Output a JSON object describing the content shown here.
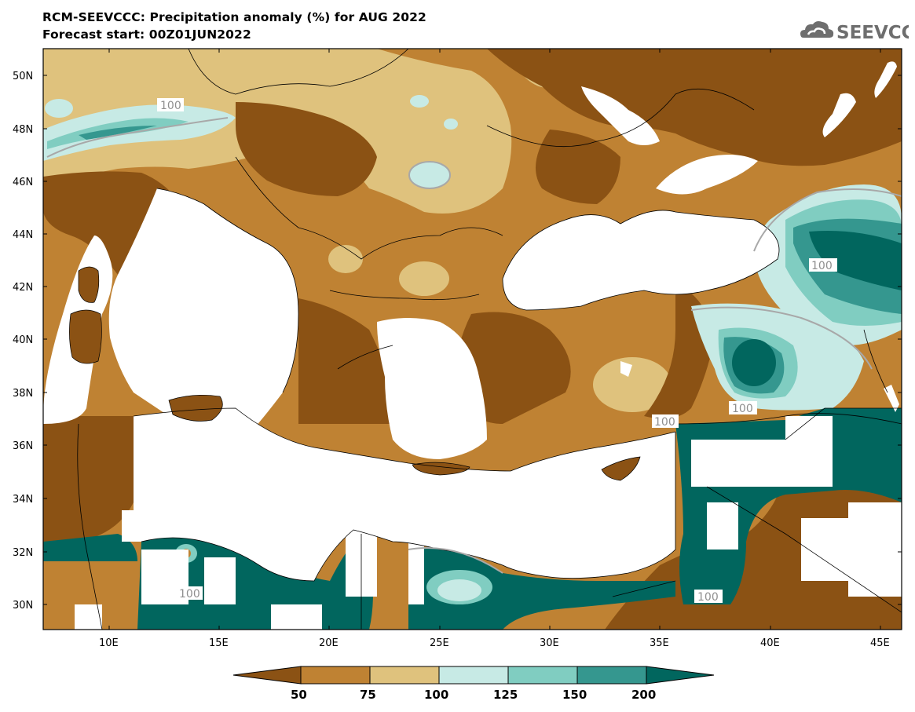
{
  "header": {
    "title": "RCM-SEEVCCC: Precipitation anomaly (%) for AUG 2022",
    "subtitle": "Forecast start: 00Z01JUN2022"
  },
  "logo": {
    "text": "SEEVCCC",
    "icon": "cloud-icon"
  },
  "axes": {
    "lat_labels": [
      "50N",
      "48N",
      "46N",
      "44N",
      "42N",
      "40N",
      "38N",
      "36N",
      "34N",
      "32N",
      "30N"
    ],
    "lon_labels": [
      "10E",
      "15E",
      "20E",
      "25E",
      "30E",
      "35E",
      "40E",
      "45E"
    ]
  },
  "contour_labels": [
    "100",
    "100",
    "100",
    "100",
    "100",
    "100"
  ],
  "colorbar": {
    "ticks": [
      "50",
      "75",
      "100",
      "125",
      "150",
      "200"
    ],
    "colors": [
      "#8b5214",
      "#bf8233",
      "#dfc27d",
      "#c7eae5",
      "#80cdc1",
      "#35978f",
      "#01665e"
    ]
  },
  "legend_colors": {
    "below_50": "#8b5214",
    "50_75": "#bf8233",
    "75_100": "#dfc27d",
    "100_125": "#c7eae5",
    "125_150": "#80cdc1",
    "150_200": "#35978f",
    "above_200": "#01665e"
  }
}
